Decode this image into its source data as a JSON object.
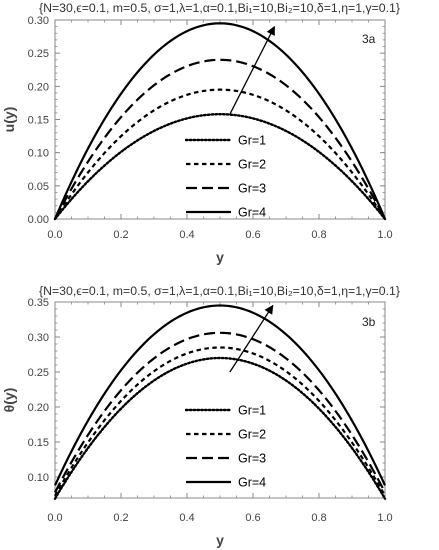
{
  "chart_data": [
    {
      "type": "line",
      "panel": "3a",
      "parameters": "{N=30,ϵ=0.1, m=0.5, σ=1,λ=1,α=0.1,Bi₁=10,Bi₂=10,δ=1,η=1,γ=0.1}",
      "xlabel": "y",
      "ylabel": "u(y)",
      "xlim": [
        0,
        1
      ],
      "ylim": [
        0,
        0.3
      ],
      "xticks": [
        0.0,
        0.2,
        0.4,
        0.6,
        0.8,
        1.0
      ],
      "xtick_labels": [
        "0.0",
        "0.2",
        "0.4",
        "0.6",
        "0.8",
        "1.0"
      ],
      "yticks": [
        0.0,
        0.05,
        0.1,
        0.15,
        0.2,
        0.25,
        0.3
      ],
      "ytick_labels": [
        "0.00",
        "0.05",
        "0.10",
        "0.15",
        "0.20",
        "0.25",
        "0.30"
      ],
      "grid": false,
      "legend_position": "bottom-center",
      "series": [
        {
          "name": "Gr=1",
          "style": "dotted",
          "x": [
            0,
            0.1,
            0.2,
            0.3,
            0.4,
            0.5,
            0.6,
            0.7,
            0.8,
            0.9,
            1.0
          ],
          "values": [
            0.0,
            0.057,
            0.101,
            0.133,
            0.152,
            0.158,
            0.152,
            0.133,
            0.101,
            0.057,
            0.0
          ]
        },
        {
          "name": "Gr=2",
          "style": "short-dash",
          "x": [
            0,
            0.1,
            0.2,
            0.3,
            0.4,
            0.5,
            0.6,
            0.7,
            0.8,
            0.9,
            1.0
          ],
          "values": [
            0.0,
            0.07,
            0.125,
            0.164,
            0.187,
            0.195,
            0.187,
            0.164,
            0.125,
            0.07,
            0.0
          ]
        },
        {
          "name": "Gr=3",
          "style": "long-dash",
          "x": [
            0,
            0.1,
            0.2,
            0.3,
            0.4,
            0.5,
            0.6,
            0.7,
            0.8,
            0.9,
            1.0
          ],
          "values": [
            0.0,
            0.086,
            0.154,
            0.202,
            0.231,
            0.24,
            0.231,
            0.202,
            0.154,
            0.086,
            0.0
          ]
        },
        {
          "name": "Gr=4",
          "style": "solid",
          "x": [
            0,
            0.1,
            0.2,
            0.3,
            0.4,
            0.5,
            0.6,
            0.7,
            0.8,
            0.9,
            1.0
          ],
          "values": [
            0.0,
            0.106,
            0.189,
            0.248,
            0.283,
            0.295,
            0.283,
            0.248,
            0.189,
            0.106,
            0.0
          ]
        }
      ],
      "arrow": {
        "from": [
          0.53,
          0.158
        ],
        "to": [
          0.665,
          0.29
        ]
      }
    },
    {
      "type": "line",
      "panel": "3b",
      "parameters": "{N=30,ϵ=0.1, m=0.5, σ=1,λ=1,α=0.1,Bi₁=10,Bi₂=10,δ=1,η=1,γ=0.1}",
      "xlabel": "y",
      "ylabel": "θ(y)",
      "xlim": [
        0,
        1
      ],
      "ylim": [
        0.07,
        0.35
      ],
      "xticks": [
        0.0,
        0.2,
        0.4,
        0.6,
        0.8,
        1.0
      ],
      "xtick_labels": [
        "0.0",
        "0.2",
        "0.4",
        "0.6",
        "0.8",
        "1.0"
      ],
      "yticks": [
        0.1,
        0.15,
        0.2,
        0.25,
        0.3,
        0.35
      ],
      "ytick_labels": [
        "0.10",
        "0.15",
        "0.20",
        "0.25",
        "0.30",
        "0.35"
      ],
      "grid": false,
      "legend_position": "bottom-center",
      "series": [
        {
          "name": "Gr=1",
          "style": "dotted",
          "x": [
            0,
            0.1,
            0.2,
            0.3,
            0.4,
            0.5,
            0.6,
            0.7,
            0.8,
            0.9,
            1.0
          ],
          "values": [
            0.069,
            0.141,
            0.198,
            0.238,
            0.262,
            0.27,
            0.262,
            0.238,
            0.198,
            0.141,
            0.069
          ]
        },
        {
          "name": "Gr=2",
          "style": "short-dash",
          "x": [
            0,
            0.1,
            0.2,
            0.3,
            0.4,
            0.5,
            0.6,
            0.7,
            0.8,
            0.9,
            1.0
          ],
          "values": [
            0.073,
            0.149,
            0.208,
            0.251,
            0.276,
            0.285,
            0.276,
            0.251,
            0.208,
            0.149,
            0.073
          ]
        },
        {
          "name": "Gr=3",
          "style": "long-dash",
          "x": [
            0,
            0.1,
            0.2,
            0.3,
            0.4,
            0.5,
            0.6,
            0.7,
            0.8,
            0.9,
            1.0
          ],
          "values": [
            0.078,
            0.159,
            0.223,
            0.269,
            0.297,
            0.306,
            0.297,
            0.269,
            0.223,
            0.159,
            0.078
          ]
        },
        {
          "name": "Gr=4",
          "style": "solid",
          "x": [
            0,
            0.1,
            0.2,
            0.3,
            0.4,
            0.5,
            0.6,
            0.7,
            0.8,
            0.9,
            1.0
          ],
          "values": [
            0.088,
            0.18,
            0.252,
            0.304,
            0.335,
            0.345,
            0.335,
            0.304,
            0.252,
            0.18,
            0.088
          ]
        }
      ],
      "arrow": {
        "from": [
          0.53,
          0.25
        ],
        "to": [
          0.66,
          0.345
        ]
      }
    }
  ]
}
